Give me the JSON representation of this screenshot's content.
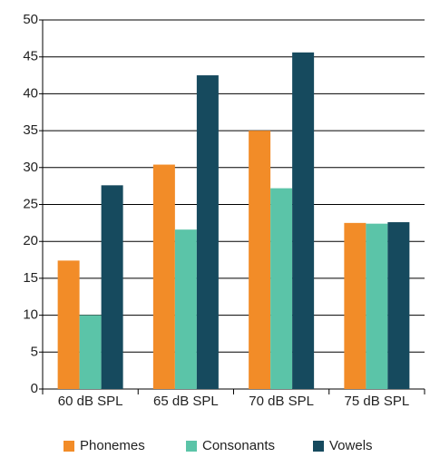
{
  "chart_data": {
    "type": "bar",
    "categories": [
      "60 dB SPL",
      "65 dB SPL",
      "70 dB SPL",
      "75 dB SPL"
    ],
    "series": [
      {
        "name": "Phonemes",
        "color": "#f28c28",
        "values": [
          17.4,
          30.4,
          35.0,
          22.5
        ]
      },
      {
        "name": "Consonants",
        "color": "#5bc4a8",
        "values": [
          10.0,
          21.6,
          27.2,
          22.4
        ]
      },
      {
        "name": "Vowels",
        "color": "#164a5e",
        "values": [
          27.6,
          42.5,
          45.6,
          22.6
        ]
      }
    ],
    "ylim": [
      0,
      50
    ],
    "yticks": [
      0,
      5,
      10,
      15,
      20,
      25,
      30,
      35,
      40,
      45,
      50
    ],
    "grid": true,
    "legend": "bottom"
  }
}
